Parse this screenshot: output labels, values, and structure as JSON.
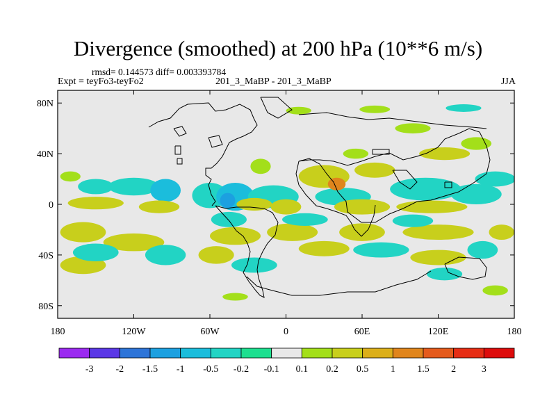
{
  "chart_data": {
    "type": "heatmap",
    "title": "Divergence (smoothed) at 200 hPa (10**6 m/s)",
    "stats_line": "rmsd= 0.144573 diff= 0.003393784",
    "expt_label": "Expt = teyFo3-teyFo2",
    "center_label": "201_3_MaBP - 201_3_MaBP",
    "season_label": "JJA",
    "x_range": [
      -180,
      180
    ],
    "y_range": [
      -90,
      90
    ],
    "x_ticks": [
      {
        "value": -180,
        "label": "180"
      },
      {
        "value": -120,
        "label": "120W"
      },
      {
        "value": -60,
        "label": "60W"
      },
      {
        "value": 0,
        "label": "0"
      },
      {
        "value": 60,
        "label": "60E"
      },
      {
        "value": 120,
        "label": "120E"
      },
      {
        "value": 180,
        "label": "180"
      }
    ],
    "y_ticks": [
      {
        "value": 80,
        "label": "80N"
      },
      {
        "value": 40,
        "label": "40N"
      },
      {
        "value": 0,
        "label": "0"
      },
      {
        "value": -40,
        "label": "40S"
      },
      {
        "value": -80,
        "label": "80S"
      }
    ],
    "colorbar": {
      "levels": [
        "-3",
        "-2",
        "-1.5",
        "-1",
        "-0.5",
        "-0.2",
        "-0.1",
        "0.1",
        "0.2",
        "0.5",
        "1",
        "1.5",
        "2",
        "3"
      ],
      "colors": [
        "#9b2af0",
        "#5a37e6",
        "#2d74d8",
        "#1ca0e0",
        "#1bbddc",
        "#22d4c4",
        "#1ddf8f",
        "#e8e8e8",
        "#a3df1a",
        "#c8cf1c",
        "#dcaf1a",
        "#e0851c",
        "#e45a1c",
        "#e62d14",
        "#dd0c0c"
      ]
    },
    "blobs": [
      {
        "lon": -170,
        "lat": 22,
        "rx": 8,
        "ry": 4,
        "level": 8
      },
      {
        "lon": -150,
        "lat": 14,
        "rx": 14,
        "ry": 6,
        "level": 5
      },
      {
        "lon": -120,
        "lat": 14,
        "rx": 20,
        "ry": 7,
        "level": 5
      },
      {
        "lon": -95,
        "lat": 11,
        "rx": 12,
        "ry": 9,
        "level": 4
      },
      {
        "lon": -60,
        "lat": 7,
        "rx": 14,
        "ry": 10,
        "level": 5
      },
      {
        "lon": -40,
        "lat": 6,
        "rx": 15,
        "ry": 11,
        "level": 4
      },
      {
        "lon": -46,
        "lat": 3,
        "rx": 6,
        "ry": 6,
        "level": 3
      },
      {
        "lon": -10,
        "lat": 6,
        "rx": 20,
        "ry": 9,
        "level": 5
      },
      {
        "lon": 45,
        "lat": 6,
        "rx": 22,
        "ry": 7,
        "level": 5
      },
      {
        "lon": 110,
        "lat": 12,
        "rx": 28,
        "ry": 9,
        "level": 5
      },
      {
        "lon": 150,
        "lat": 8,
        "rx": 20,
        "ry": 8,
        "level": 5
      },
      {
        "lon": 165,
        "lat": 20,
        "rx": 16,
        "ry": 6,
        "level": 5
      },
      {
        "lon": -150,
        "lat": 1,
        "rx": 22,
        "ry": 5,
        "level": 9
      },
      {
        "lon": -100,
        "lat": -2,
        "rx": 16,
        "ry": 5,
        "level": 9
      },
      {
        "lon": -25,
        "lat": 0,
        "rx": 14,
        "ry": 5,
        "level": 9
      },
      {
        "lon": 0,
        "lat": -2,
        "rx": 12,
        "ry": 6,
        "level": 9
      },
      {
        "lon": 30,
        "lat": 22,
        "rx": 20,
        "ry": 9,
        "level": 9
      },
      {
        "lon": 40,
        "lat": 16,
        "rx": 7,
        "ry": 5,
        "level": 11
      },
      {
        "lon": 60,
        "lat": -2,
        "rx": 22,
        "ry": 6,
        "level": 9
      },
      {
        "lon": 115,
        "lat": -2,
        "rx": 28,
        "ry": 5,
        "level": 9
      },
      {
        "lon": -20,
        "lat": 30,
        "rx": 8,
        "ry": 6,
        "level": 8
      },
      {
        "lon": 125,
        "lat": 40,
        "rx": 20,
        "ry": 5,
        "level": 9
      },
      {
        "lon": 70,
        "lat": 27,
        "rx": 16,
        "ry": 6,
        "level": 9
      },
      {
        "lon": 55,
        "lat": 40,
        "rx": 10,
        "ry": 4,
        "level": 8
      },
      {
        "lon": -160,
        "lat": -22,
        "rx": 18,
        "ry": 8,
        "level": 9
      },
      {
        "lon": -120,
        "lat": -30,
        "rx": 24,
        "ry": 7,
        "level": 9
      },
      {
        "lon": -40,
        "lat": -25,
        "rx": 20,
        "ry": 7,
        "level": 9
      },
      {
        "lon": 5,
        "lat": -22,
        "rx": 20,
        "ry": 7,
        "level": 9
      },
      {
        "lon": 60,
        "lat": -22,
        "rx": 18,
        "ry": 7,
        "level": 9
      },
      {
        "lon": 120,
        "lat": -22,
        "rx": 28,
        "ry": 6,
        "level": 9
      },
      {
        "lon": 170,
        "lat": -22,
        "rx": 10,
        "ry": 6,
        "level": 9
      },
      {
        "lon": -160,
        "lat": -48,
        "rx": 18,
        "ry": 7,
        "level": 9
      },
      {
        "lon": -55,
        "lat": -40,
        "rx": 14,
        "ry": 7,
        "level": 9
      },
      {
        "lon": 30,
        "lat": -35,
        "rx": 20,
        "ry": 6,
        "level": 9
      },
      {
        "lon": 120,
        "lat": -42,
        "rx": 22,
        "ry": 6,
        "level": 9
      },
      {
        "lon": -150,
        "lat": -38,
        "rx": 18,
        "ry": 7,
        "level": 5
      },
      {
        "lon": -95,
        "lat": -40,
        "rx": 16,
        "ry": 8,
        "level": 5
      },
      {
        "lon": -25,
        "lat": -48,
        "rx": 18,
        "ry": 6,
        "level": 5
      },
      {
        "lon": 75,
        "lat": -36,
        "rx": 22,
        "ry": 6,
        "level": 5
      },
      {
        "lon": 155,
        "lat": -36,
        "rx": 12,
        "ry": 7,
        "level": 5
      },
      {
        "lon": 125,
        "lat": -55,
        "rx": 14,
        "ry": 5,
        "level": 5
      },
      {
        "lon": -45,
        "lat": -12,
        "rx": 14,
        "ry": 6,
        "level": 5
      },
      {
        "lon": 15,
        "lat": -12,
        "rx": 18,
        "ry": 5,
        "level": 5
      },
      {
        "lon": 100,
        "lat": -13,
        "rx": 16,
        "ry": 5,
        "level": 5
      },
      {
        "lon": 10,
        "lat": 74,
        "rx": 10,
        "ry": 3,
        "level": 8
      },
      {
        "lon": 70,
        "lat": 75,
        "rx": 12,
        "ry": 3,
        "level": 8
      },
      {
        "lon": 140,
        "lat": 76,
        "rx": 14,
        "ry": 3,
        "level": 5
      },
      {
        "lon": 150,
        "lat": 48,
        "rx": 12,
        "ry": 5,
        "level": 8
      },
      {
        "lon": 100,
        "lat": 60,
        "rx": 14,
        "ry": 4,
        "level": 8
      },
      {
        "lon": -40,
        "lat": -73,
        "rx": 10,
        "ry": 3,
        "level": 8
      },
      {
        "lon": 165,
        "lat": -68,
        "rx": 10,
        "ry": 4,
        "level": 8
      }
    ]
  }
}
